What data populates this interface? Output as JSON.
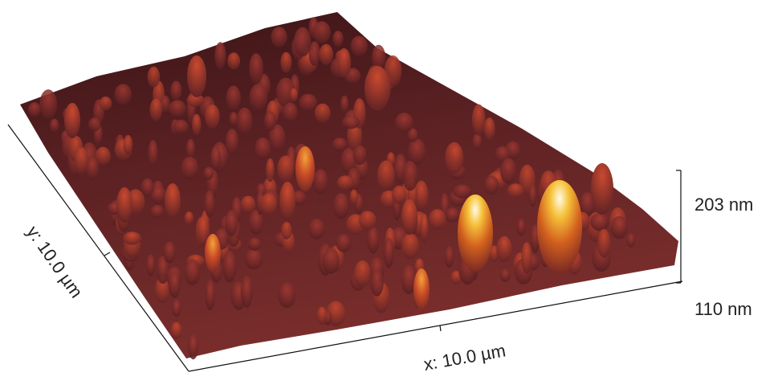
{
  "image": {
    "axes": {
      "x_label": "x: 10.0 µm",
      "y_label": "y: 10.0 µm",
      "z_top": "203 nm",
      "z_bottom": "110 nm"
    }
  }
}
